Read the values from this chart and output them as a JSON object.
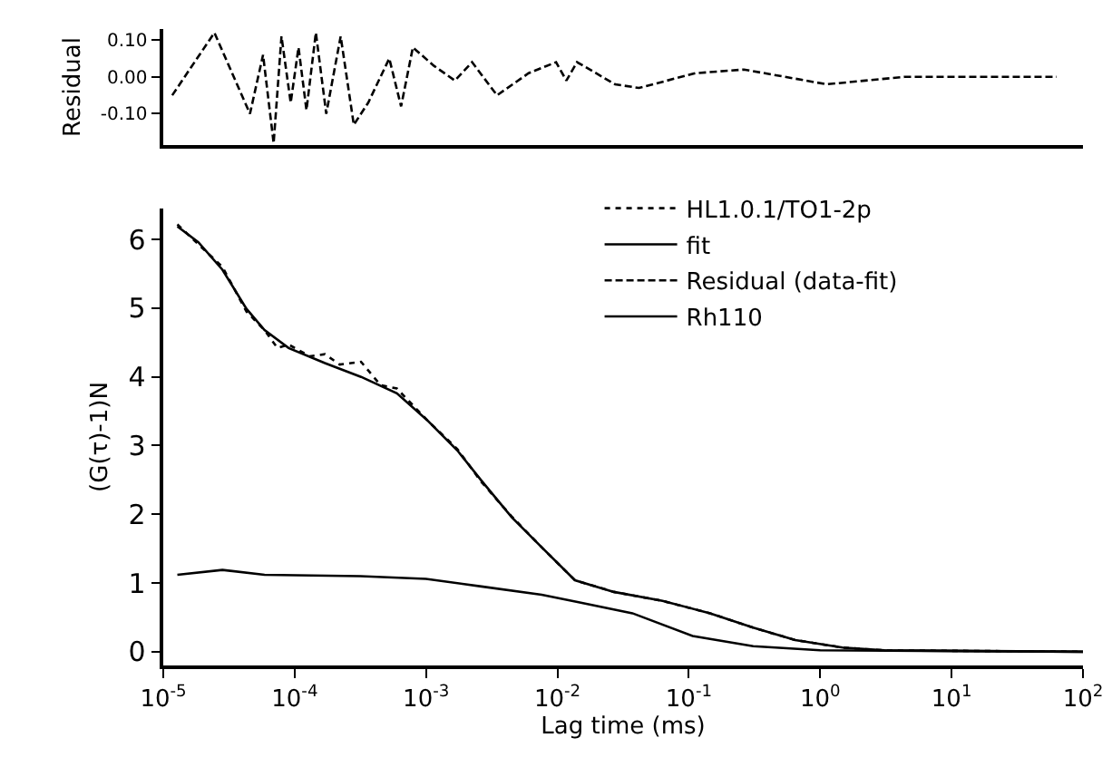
{
  "chart_data": [
    {
      "type": "line",
      "ylabel": "Residual",
      "log": "x",
      "tick_labels": "y",
      "grid": false,
      "legend": false,
      "xlim": [
        1e-05,
        100
      ],
      "ylim": [
        -0.185,
        0.13
      ],
      "yticks": [
        {
          "value": 0.1,
          "label": "0.10"
        },
        {
          "value": 0,
          "label": "0.00"
        },
        {
          "value": -0.1,
          "label": "-0.10"
        }
      ],
      "series": [
        {
          "name": "Residual (data-fit)",
          "color": "#000000",
          "line_style": "dashed",
          "x": [
            1.17e-05,
            2.45e-05,
            4.57e-05,
            5.75e-05,
            6.92e-05,
            7.94e-05,
            9.33e-05,
            0.000107,
            0.000123,
            0.000145,
            0.000174,
            0.000224,
            0.000282,
            0.000363,
            0.000525,
            0.000646,
            0.000794,
            0.00115,
            0.00166,
            0.00224,
            0.00347,
            0.00603,
            0.00977,
            0.0117,
            0.0141,
            0.0275,
            0.0417,
            0.112,
            0.263,
            1.12,
            4.37,
            63.1
          ],
          "values": [
            -0.05,
            0.12,
            -0.1,
            0.06,
            -0.18,
            0.11,
            -0.07,
            0.08,
            -0.09,
            0.12,
            -0.1,
            0.11,
            -0.13,
            -0.07,
            0.05,
            -0.08,
            0.08,
            0.03,
            -0.01,
            0.04,
            -0.05,
            0.01,
            0.04,
            -0.01,
            0.04,
            -0.02,
            -0.03,
            0.01,
            0.02,
            -0.02,
            0.0,
            0.0
          ]
        }
      ]
    },
    {
      "type": "line",
      "xlabel": "Lag time (ms)",
      "ylabel": "(G(τ)-1)N",
      "log": "x",
      "grid": false,
      "legend": "top right",
      "xlim": [
        1e-05,
        100
      ],
      "ylim": [
        -0.2,
        6.45
      ],
      "xticks": [
        {
          "value": 1e-05,
          "label": "10$^{-5}$"
        },
        {
          "value": 0.0001,
          "label": "10$^{-4}$"
        },
        {
          "value": 0.001,
          "label": "10$^{-3}$"
        },
        {
          "value": 0.01,
          "label": "10$^{-2}$"
        },
        {
          "value": 0.1,
          "label": "10$^{-1}$"
        },
        {
          "value": 1,
          "label": "10$^{0}$"
        },
        {
          "value": 10,
          "label": "10$^{1}$"
        },
        {
          "value": 100,
          "label": "10$^{2}$"
        }
      ],
      "yticks": [
        0,
        1,
        2,
        3,
        4,
        5,
        6
      ],
      "series": [
        {
          "name": "HL1.0.1/TO1-2p",
          "color": "#000000",
          "line_style": "dotted",
          "x": [
            1.28e-05,
            1.85e-05,
            2.82e-05,
            4.3e-05,
            5.9e-05,
            7.4e-05,
            9e-05,
            0.00013,
            0.00017,
            0.00022,
            0.00032,
            0.00045,
            0.0006,
            0.00102,
            0.00173,
            0.00264,
            0.00448,
            0.00759,
            0.0136,
            0.0269,
            0.0631,
            0.145,
            0.309,
            0.646,
            1.48,
            3.09,
            100
          ],
          "values": [
            6.22,
            5.93,
            5.6,
            4.95,
            4.68,
            4.42,
            4.47,
            4.3,
            4.33,
            4.18,
            4.22,
            3.88,
            3.83,
            3.37,
            2.95,
            2.47,
            1.97,
            1.52,
            1.04,
            0.87,
            0.74,
            0.56,
            0.35,
            0.17,
            0.06,
            0.02,
            0.0
          ]
        },
        {
          "name": "fit",
          "color": "#000000",
          "line_style": "solid",
          "x": [
            1.28e-05,
            1.85e-05,
            2.82e-05,
            4.3e-05,
            5.9e-05,
            9e-05,
            0.00017,
            0.00032,
            0.0006,
            0.00102,
            0.00173,
            0.00264,
            0.00448,
            0.00759,
            0.0136,
            0.0269,
            0.0631,
            0.145,
            0.309,
            0.646,
            1.48,
            3.09,
            100
          ],
          "values": [
            6.19,
            5.96,
            5.56,
            4.99,
            4.68,
            4.42,
            4.2,
            4.0,
            3.76,
            3.37,
            2.93,
            2.49,
            1.96,
            1.52,
            1.04,
            0.87,
            0.74,
            0.56,
            0.35,
            0.17,
            0.06,
            0.02,
            0.0
          ]
        },
        {
          "name": "Rh110",
          "color": "#000000",
          "line_style": "solid",
          "x": [
            1.28e-05,
            2.82e-05,
            5.9e-05,
            0.000316,
            0.001,
            0.00264,
            0.00759,
            0.0145,
            0.0372,
            0.107,
            0.309,
            1.0,
            100
          ],
          "values": [
            1.12,
            1.19,
            1.12,
            1.1,
            1.06,
            0.95,
            0.83,
            0.72,
            0.56,
            0.23,
            0.08,
            0.02,
            0.0
          ]
        }
      ]
    }
  ]
}
